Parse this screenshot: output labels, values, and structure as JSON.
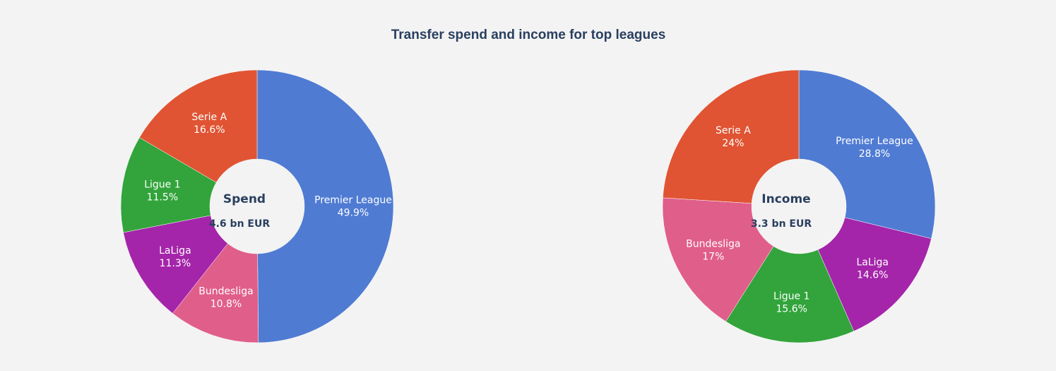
{
  "title": "Transfer spend and income for top leagues",
  "chart_data": [
    {
      "type": "pie",
      "hole": true,
      "center_title": "Spend",
      "center_value": "4.6 bn EUR",
      "slices": [
        {
          "label": "Premier League",
          "percent_text": "49.9%",
          "value": 49.9,
          "color": "#4f7bd3"
        },
        {
          "label": "Bundesliga",
          "percent_text": "10.8%",
          "value": 10.8,
          "color": "#e05e8a"
        },
        {
          "label": "LaLiga",
          "percent_text": "11.3%",
          "value": 11.3,
          "color": "#a425a9"
        },
        {
          "label": "Ligue 1",
          "percent_text": "11.5%",
          "value": 11.5,
          "color": "#32a43b"
        },
        {
          "label": "Serie A",
          "percent_text": "16.6%",
          "value": 16.6,
          "color": "#e05433"
        }
      ]
    },
    {
      "type": "pie",
      "hole": true,
      "center_title": "Income",
      "center_value": "3.3 bn EUR",
      "slices": [
        {
          "label": "Premier League",
          "percent_text": "28.8%",
          "value": 28.8,
          "color": "#4f7bd3"
        },
        {
          "label": "LaLiga",
          "percent_text": "14.6%",
          "value": 14.6,
          "color": "#a425a9"
        },
        {
          "label": "Ligue 1",
          "percent_text": "15.6%",
          "value": 15.6,
          "color": "#32a43b"
        },
        {
          "label": "Bundesliga",
          "percent_text": "17%",
          "value": 17.0,
          "color": "#e05e8a"
        },
        {
          "label": "Serie A",
          "percent_text": "24%",
          "value": 24.0,
          "color": "#e05433"
        }
      ]
    }
  ]
}
